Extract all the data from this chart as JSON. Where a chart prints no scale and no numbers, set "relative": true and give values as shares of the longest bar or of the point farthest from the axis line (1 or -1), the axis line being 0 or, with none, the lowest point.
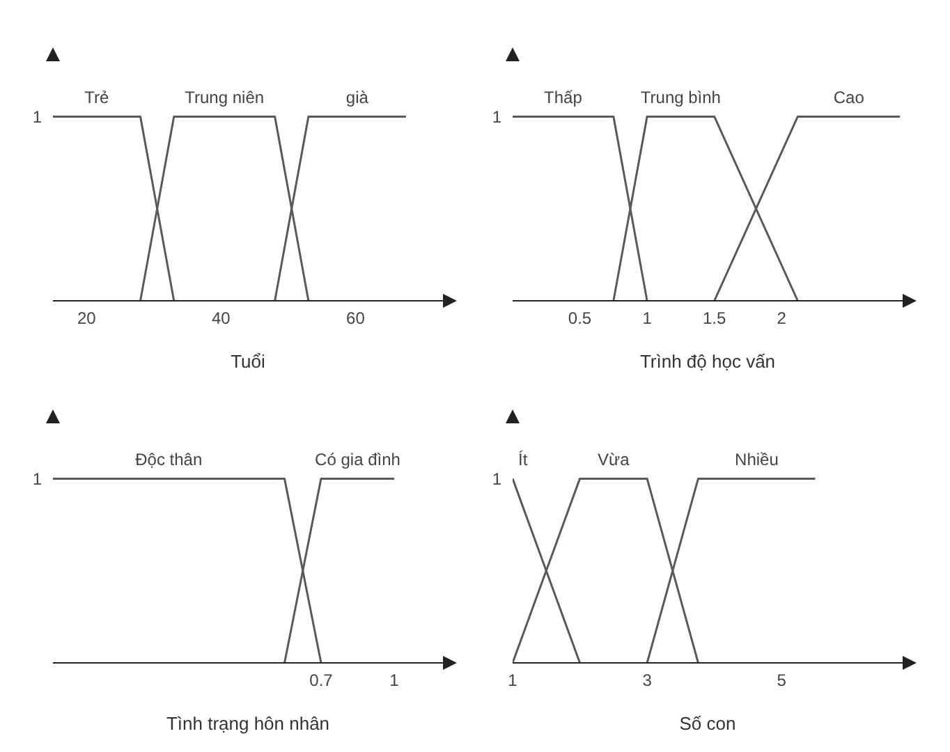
{
  "chart_data": [
    {
      "type": "line",
      "relative": true,
      "marker": "none",
      "xlabel": "Tuổi",
      "xlim": [
        15,
        73
      ],
      "xticks": [
        20,
        40,
        60
      ],
      "annotations": [
        {
          "text": "1",
          "x": 15,
          "y": 1
        }
      ],
      "series": [
        {
          "name": "Trẻ",
          "color": "#595959",
          "x": [
            15,
            28,
            33
          ],
          "values": [
            1,
            1,
            0
          ]
        },
        {
          "name": "Trung niên",
          "color": "#595959",
          "x": [
            28,
            33,
            48,
            53
          ],
          "values": [
            0,
            1,
            1,
            0
          ]
        },
        {
          "name": "già",
          "color": "#595959",
          "x": [
            48,
            53,
            67.5
          ],
          "values": [
            0,
            1,
            1
          ]
        }
      ]
    },
    {
      "type": "line",
      "relative": true,
      "marker": "none",
      "xlabel": "Trình độ học vấn",
      "xlim": [
        0,
        2.9
      ],
      "xticks": [
        0.5,
        1,
        1.5,
        2
      ],
      "annotations": [
        {
          "text": "1",
          "x": 0,
          "y": 1
        }
      ],
      "series": [
        {
          "name": "Thấp",
          "color": "#595959",
          "x": [
            0,
            0.75,
            1
          ],
          "values": [
            1,
            1,
            0
          ]
        },
        {
          "name": "Trung bình",
          "color": "#595959",
          "x": [
            0.75,
            1,
            1.5,
            2.12
          ],
          "values": [
            0,
            1,
            1,
            0
          ]
        },
        {
          "name": "Cao",
          "color": "#595959",
          "x": [
            1.5,
            2.12,
            2.88
          ],
          "values": [
            0,
            1,
            1
          ]
        }
      ]
    },
    {
      "type": "line",
      "relative": true,
      "marker": "none",
      "xlabel": "Tình trạng hôn nhân",
      "xlim": [
        -0.4,
        1.2
      ],
      "xticks": [
        0.7,
        1
      ],
      "annotations": [
        {
          "text": "1",
          "x": -0.4,
          "y": 1
        }
      ],
      "series": [
        {
          "name": "Độc thân",
          "color": "#595959",
          "x": [
            -0.4,
            0.55,
            0.7
          ],
          "values": [
            1,
            1,
            0
          ]
        },
        {
          "name": "Có gia đình",
          "color": "#595959",
          "x": [
            0.55,
            0.7,
            1
          ],
          "values": [
            0,
            1,
            1
          ]
        }
      ]
    },
    {
      "type": "line",
      "relative": true,
      "marker": "none",
      "xlabel": "Số con",
      "xlim": [
        1,
        6.8
      ],
      "xticks": [
        1,
        3,
        5
      ],
      "annotations": [
        {
          "text": "1",
          "x": 1,
          "y": 1
        }
      ],
      "series": [
        {
          "name": "Ít",
          "color": "#595959",
          "x": [
            1,
            2
          ],
          "values": [
            1,
            0
          ]
        },
        {
          "name": "Vừa",
          "color": "#595959",
          "x": [
            1,
            2,
            3,
            3.76
          ],
          "values": [
            0,
            1,
            1,
            0
          ]
        },
        {
          "name": "Nhiều",
          "color": "#595959",
          "x": [
            3,
            3.76,
            5.5
          ],
          "values": [
            0,
            1,
            1
          ]
        }
      ]
    }
  ]
}
